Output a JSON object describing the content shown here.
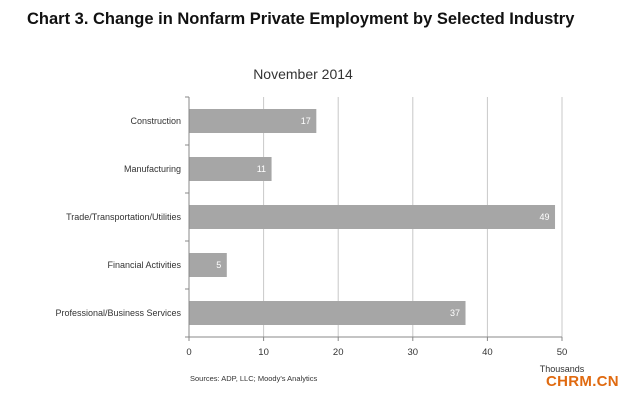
{
  "title": "Chart 3. Change in Nonfarm Private Employment by Selected Industry",
  "source": "Sources: ADP, LLC; Moody's Analytics",
  "watermark": "CHRM.CN",
  "chart_data": {
    "type": "bar",
    "orientation": "horizontal",
    "title": "November 2014",
    "categories": [
      "Construction",
      "Manufacturing",
      "Trade/Transportation/Utilities",
      "Financial Activities",
      "Professional/Business Services"
    ],
    "values": [
      17,
      11,
      49,
      5,
      37
    ],
    "data_labels": [
      "17",
      "11",
      "49",
      "5",
      "37"
    ],
    "xlabel": "Thousands",
    "ylabel": "",
    "xlim": [
      0,
      50
    ],
    "xticks": [
      0,
      10,
      20,
      30,
      40,
      50
    ],
    "grid": "vertical",
    "legend": "none",
    "bar_color": "#a6a6a6",
    "grid_color": "#c8c8c8"
  }
}
